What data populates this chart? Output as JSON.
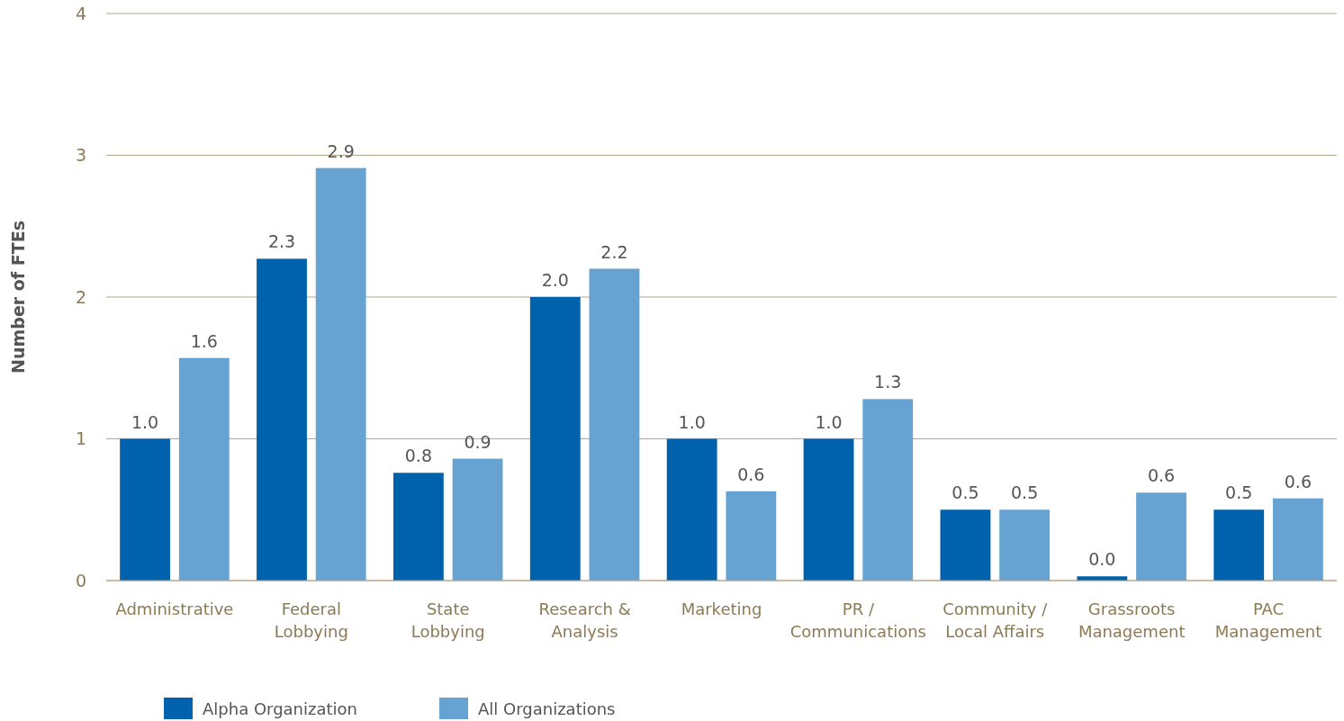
{
  "chart_data": {
    "type": "bar",
    "ylabel": "Number of FTEs",
    "categories": [
      "Administrative",
      "Federal Lobbying",
      "State Lobbying",
      "Research & Analysis",
      "Marketing",
      "PR / Communications",
      "Community / Local Affairs",
      "Grassroots Management",
      "PAC Management"
    ],
    "series": [
      {
        "name": "Alpha Organization",
        "color": "#0061ad",
        "values": [
          1.0,
          2.27,
          0.76,
          2.0,
          1.0,
          1.0,
          0.5,
          0.03,
          0.5
        ],
        "value_labels": [
          "1.0",
          "2.3",
          "0.8",
          "2.0",
          "1.0",
          "1.0",
          "0.5",
          "0.0",
          "0.5"
        ]
      },
      {
        "name": "All Organizations",
        "color": "#66a3d2",
        "values": [
          1.57,
          2.91,
          0.86,
          2.2,
          0.63,
          1.28,
          0.5,
          0.62,
          0.58
        ],
        "value_labels": [
          "1.6",
          "2.9",
          "0.9",
          "2.2",
          "0.6",
          "1.3",
          "0.5",
          "0.6",
          "0.6"
        ]
      }
    ],
    "ylim": [
      0,
      4
    ],
    "yticks": [
      0,
      1,
      2,
      3,
      4
    ],
    "grid": "y",
    "legend": "bottom left"
  }
}
